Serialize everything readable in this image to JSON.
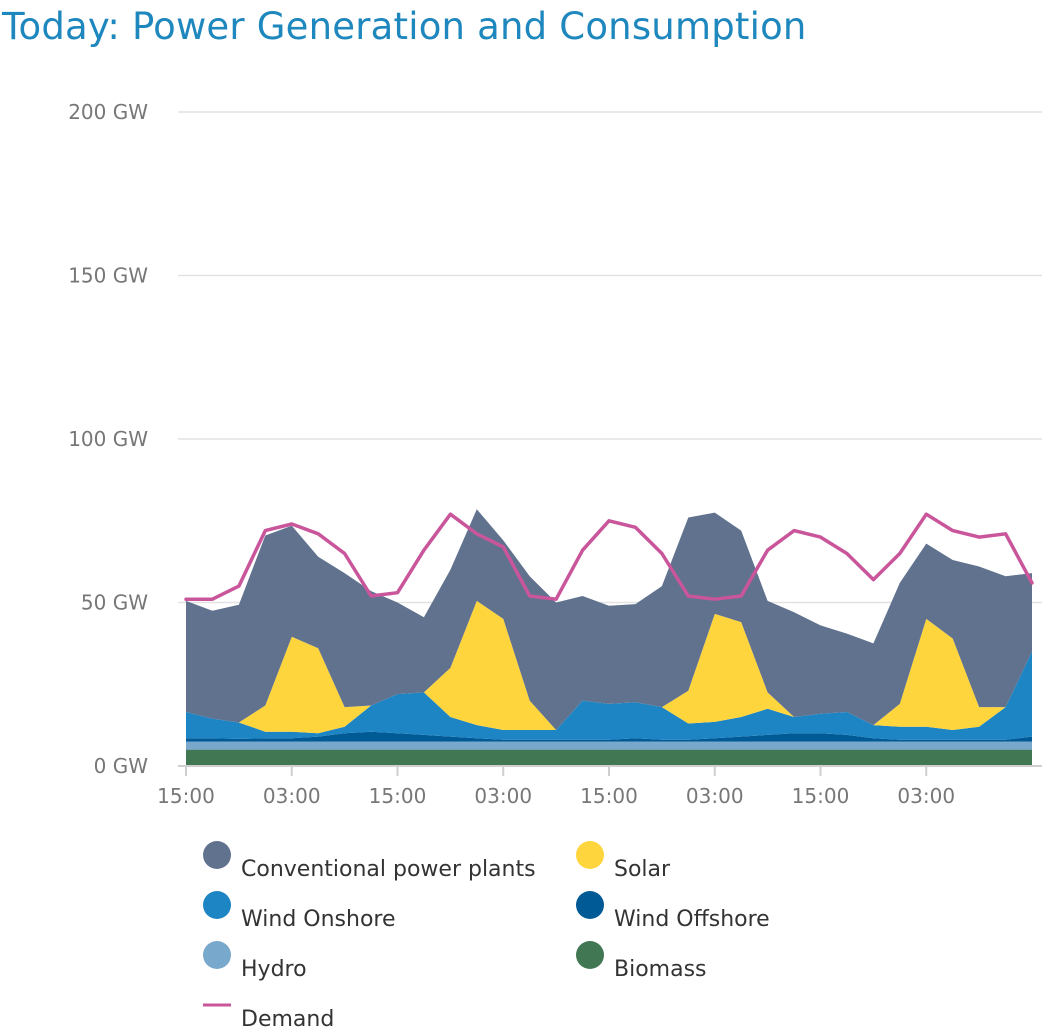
{
  "title": "Today: Power Generation and Consumption",
  "colors": {
    "title": "#1e87bd",
    "grid": "#e2e2e2",
    "axis": "#cfcfcf",
    "text": "#777777",
    "legend_text": "#333333"
  },
  "chart_data": {
    "type": "area",
    "stacked": true,
    "title": "Today: Power Generation and Consumption",
    "y_unit": "GW",
    "ylim": [
      0,
      200
    ],
    "y_ticks": [
      {
        "value": 0,
        "label": "0 GW"
      },
      {
        "value": 50,
        "label": "50 GW"
      },
      {
        "value": 100,
        "label": "100 GW"
      },
      {
        "value": 150,
        "label": "150 GW"
      },
      {
        "value": 200,
        "label": "200 GW"
      }
    ],
    "x_start_hour": 15,
    "x_step_hours": 3,
    "x_ticks": [
      {
        "hour": 0,
        "label": "15:00"
      },
      {
        "hour": 12,
        "label": "03:00"
      },
      {
        "hour": 24,
        "label": "15:00"
      },
      {
        "hour": 36,
        "label": "03:00"
      },
      {
        "hour": 48,
        "label": "15:00"
      },
      {
        "hour": 60,
        "label": "03:00"
      },
      {
        "hour": 72,
        "label": "15:00"
      },
      {
        "hour": 84,
        "label": "03:00"
      }
    ],
    "legend_position": "bottom",
    "grid": true,
    "series": [
      {
        "name": "Biomass",
        "color": "#417753",
        "kind": "area",
        "values": [
          5,
          5,
          5,
          5,
          5,
          5,
          5,
          5,
          5,
          5,
          5,
          5,
          5,
          5,
          5,
          5,
          5,
          5,
          5,
          5,
          5,
          5,
          5,
          5,
          5,
          5,
          5,
          5,
          5,
          5,
          5,
          5,
          5
        ]
      },
      {
        "name": "Hydro",
        "color": "#79a8cd",
        "kind": "area",
        "values": [
          2.5,
          2.5,
          2.5,
          2.5,
          2.5,
          2.5,
          2.5,
          2.5,
          2.5,
          2.5,
          2.5,
          2.5,
          2.5,
          2.5,
          2.5,
          2.5,
          2.5,
          2.5,
          2.5,
          2.5,
          2.5,
          2.5,
          2.5,
          2.5,
          2.5,
          2.5,
          2.5,
          2.5,
          2.5,
          2.5,
          2.5,
          2.5,
          2.5
        ]
      },
      {
        "name": "Wind Offshore",
        "color": "#005a96",
        "kind": "area",
        "values": [
          1,
          1,
          0.8,
          1,
          1,
          1.5,
          2.5,
          3,
          2.5,
          2,
          1.5,
          1,
          0.5,
          0.5,
          0.5,
          0.5,
          0.5,
          1,
          0.5,
          0.5,
          1,
          1.5,
          2,
          2.5,
          2.5,
          2,
          1,
          0.5,
          0.5,
          0.5,
          0.5,
          0.5,
          1.5
        ]
      },
      {
        "name": "Wind Onshore",
        "color": "#1e85c4",
        "kind": "area",
        "values": [
          8,
          6,
          5,
          2,
          2,
          1,
          2,
          8,
          12,
          13,
          6,
          4,
          3,
          3,
          3,
          12,
          11,
          11,
          10,
          5,
          5,
          6,
          8,
          5,
          6,
          7,
          4,
          4,
          4,
          3,
          4,
          10,
          26
        ]
      },
      {
        "name": "Solar",
        "color": "#ffd53d",
        "kind": "area",
        "values": [
          0,
          0,
          0,
          8,
          29,
          26,
          6,
          0,
          0,
          0,
          15,
          38,
          34,
          9,
          0,
          0,
          0,
          0,
          0,
          10,
          33,
          29,
          5,
          0,
          0,
          0,
          0,
          7,
          33,
          28,
          6,
          0,
          0
        ]
      },
      {
        "name": "Conventional power plants",
        "color": "#61728f",
        "kind": "area",
        "values": [
          34,
          33,
          36,
          52,
          34,
          28,
          41,
          35,
          28,
          23,
          30,
          28,
          24,
          38,
          39,
          32,
          30,
          30,
          37,
          53,
          31,
          28,
          28,
          32,
          27,
          24,
          25,
          37,
          23,
          24,
          43,
          40,
          24
        ]
      },
      {
        "name": "Demand",
        "color": "#c9559a",
        "kind": "line",
        "values": [
          51,
          51,
          55,
          72,
          74,
          71,
          65,
          52,
          53,
          66,
          77,
          71,
          67,
          52,
          51,
          66,
          75,
          73,
          65,
          52,
          51,
          52,
          66,
          72,
          70,
          65,
          57,
          65,
          77,
          72,
          70,
          71,
          56
        ]
      }
    ],
    "legend": [
      {
        "series": "Conventional power plants",
        "label": "Conventional power plants",
        "marker": "circle"
      },
      {
        "series": "Solar",
        "label": "Solar",
        "marker": "circle"
      },
      {
        "series": "Wind Onshore",
        "label": "Wind Onshore",
        "marker": "circle"
      },
      {
        "series": "Wind Offshore",
        "label": "Wind Offshore",
        "marker": "circle"
      },
      {
        "series": "Hydro",
        "label": "Hydro",
        "marker": "circle"
      },
      {
        "series": "Biomass",
        "label": "Biomass",
        "marker": "circle"
      },
      {
        "series": "Demand",
        "label": "Demand",
        "marker": "line"
      }
    ]
  }
}
